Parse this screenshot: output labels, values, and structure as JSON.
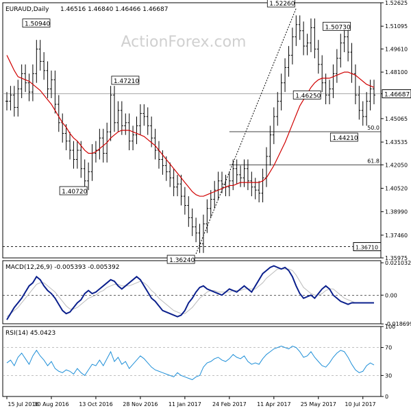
{
  "header": {
    "symbol": "EURAUD,Daily",
    "ohlc": "1.46516 1.46840 1.46466 1.46687"
  },
  "watermark": "ActionForex.com",
  "chart_data": [
    {
      "type": "ohlc",
      "title": "EURAUD,Daily",
      "ylim": [
        1.35975,
        1.52625
      ],
      "y_ticks": [
        "1.52625",
        "1.51095",
        "1.49610",
        "1.48100",
        "1.46687",
        "1.45065",
        "1.43535",
        "1.42050",
        "1.40520",
        "1.38990",
        "1.37460",
        "1.35975"
      ],
      "y_tick_values": [
        1.52625,
        1.51095,
        1.4961,
        1.481,
        1.46687,
        1.45065,
        1.43535,
        1.4205,
        1.4052,
        1.3899,
        1.3746,
        1.35975
      ],
      "current_price": 1.46687,
      "current_price_label": "1.46687",
      "close_series": [
        1.462,
        1.466,
        1.458,
        1.47,
        1.48,
        1.474,
        1.468,
        1.48,
        1.496,
        1.488,
        1.482,
        1.47,
        1.476,
        1.46,
        1.448,
        1.441,
        1.436,
        1.43,
        1.424,
        1.43,
        1.418,
        1.41,
        1.416,
        1.428,
        1.43,
        1.438,
        1.428,
        1.442,
        1.466,
        1.448,
        1.456,
        1.446,
        1.448,
        1.436,
        1.44,
        1.446,
        1.454,
        1.452,
        1.446,
        1.438,
        1.43,
        1.424,
        1.42,
        1.416,
        1.412,
        1.406,
        1.408,
        1.4,
        1.394,
        1.386,
        1.38,
        1.376,
        1.369,
        1.382,
        1.392,
        1.398,
        1.404,
        1.41,
        1.408,
        1.406,
        1.41,
        1.418,
        1.414,
        1.412,
        1.418,
        1.41,
        1.406,
        1.404,
        1.402,
        1.412,
        1.426,
        1.44,
        1.452,
        1.462,
        1.474,
        1.484,
        1.492,
        1.504,
        1.512,
        1.508,
        1.498,
        1.5,
        1.51,
        1.496,
        1.486,
        1.474,
        1.466,
        1.47,
        1.48,
        1.49,
        1.5,
        1.504,
        1.494,
        1.48,
        1.466,
        1.456,
        1.452,
        1.462,
        1.47,
        1.466
      ],
      "ma_series": [
        1.492,
        1.487,
        1.482,
        1.478,
        1.477,
        1.476,
        1.475,
        1.473,
        1.471,
        1.469,
        1.466,
        1.463,
        1.46,
        1.456,
        1.452,
        1.448,
        1.445,
        1.441,
        1.438,
        1.436,
        1.433,
        1.43,
        1.428,
        1.428,
        1.429,
        1.431,
        1.433,
        1.435,
        1.438,
        1.44,
        1.442,
        1.443,
        1.443,
        1.443,
        1.442,
        1.441,
        1.44,
        1.439,
        1.437,
        1.435,
        1.433,
        1.43,
        1.427,
        1.424,
        1.421,
        1.418,
        1.415,
        1.412,
        1.409,
        1.406,
        1.403,
        1.401,
        1.4,
        1.4,
        1.401,
        1.402,
        1.403,
        1.404,
        1.405,
        1.406,
        1.407,
        1.407,
        1.408,
        1.409,
        1.409,
        1.409,
        1.409,
        1.409,
        1.409,
        1.41,
        1.412,
        1.416,
        1.42,
        1.425,
        1.43,
        1.435,
        1.441,
        1.447,
        1.453,
        1.459,
        1.463,
        1.467,
        1.471,
        1.474,
        1.476,
        1.477,
        1.477,
        1.477,
        1.478,
        1.479,
        1.48,
        1.481,
        1.481,
        1.48,
        1.479,
        1.477,
        1.475,
        1.473,
        1.472,
        1.471
      ],
      "labels": [
        {
          "text": "1.50940",
          "value": 1.5094,
          "x_index": 12
        },
        {
          "text": "1.47210",
          "value": 1.4721,
          "x_index": 36
        },
        {
          "text": "1.40720",
          "value": 1.4072,
          "x_index": 22
        },
        {
          "text": "1.36240",
          "value": 1.3624,
          "x_index": 51
        },
        {
          "text": "1.52260",
          "value": 1.5226,
          "x_index": 78
        },
        {
          "text": "1.50730",
          "value": 1.5073,
          "x_index": 93
        },
        {
          "text": "1.46250",
          "value": 1.4625,
          "x_index": 85
        },
        {
          "text": "1.44210",
          "value": 1.4421,
          "x_index": 95
        }
      ],
      "horizontal_lines": [
        {
          "value": 1.4421,
          "label": "50.0"
        },
        {
          "value": 1.4205,
          "label": "61.8"
        }
      ],
      "support_line": {
        "value": 1.3671,
        "label": "1.36710"
      },
      "trendline": {
        "from": {
          "x_index": 51,
          "value": 1.3624
        },
        "to": {
          "x_index": 78,
          "value": 1.5226
        }
      }
    },
    {
      "type": "line",
      "title": "MACD(12,26,9) -0.005393 -0.005392",
      "ylim": [
        -0.0186,
        0.0224
      ],
      "y_ticks": [
        "0.021032",
        "0.00",
        "-0.018699"
      ],
      "y_tick_values": [
        0.021032,
        0.0,
        -0.018699
      ],
      "series": [
        {
          "name": "MACD",
          "values": [
            -0.016,
            -0.012,
            -0.008,
            -0.005,
            -0.002,
            0.002,
            0.006,
            0.008,
            0.012,
            0.01,
            0.006,
            0.003,
            0.001,
            -0.002,
            -0.006,
            -0.01,
            -0.012,
            -0.011,
            -0.008,
            -0.005,
            -0.003,
            0.001,
            0.003,
            0.001,
            0.002,
            0.004,
            0.006,
            0.008,
            0.01,
            0.009,
            0.006,
            0.004,
            0.006,
            0.008,
            0.01,
            0.012,
            0.01,
            0.006,
            0.002,
            -0.002,
            -0.004,
            -0.007,
            -0.01,
            -0.011,
            -0.012,
            -0.013,
            -0.014,
            -0.013,
            -0.01,
            -0.005,
            -0.002,
            0.002,
            0.005,
            0.006,
            0.004,
            0.003,
            0.002,
            0.001,
            0.0,
            0.002,
            0.004,
            0.003,
            0.002,
            0.004,
            0.006,
            0.004,
            0.002,
            0.006,
            0.01,
            0.014,
            0.016,
            0.018,
            0.019,
            0.018,
            0.017,
            0.018,
            0.016,
            0.012,
            0.006,
            0.001,
            -0.002,
            -0.001,
            0.0,
            -0.002,
            0.001,
            0.004,
            0.006,
            0.004,
            0.0,
            -0.002,
            -0.004,
            -0.005,
            -0.006,
            -0.005,
            -0.005,
            -0.005,
            -0.005,
            -0.005,
            -0.005,
            -0.005
          ]
        },
        {
          "name": "Signal",
          "values": [
            -0.014,
            -0.012,
            -0.01,
            -0.008,
            -0.005,
            -0.002,
            0.001,
            0.004,
            0.007,
            0.008,
            0.008,
            0.006,
            0.004,
            0.002,
            -0.001,
            -0.004,
            -0.007,
            -0.009,
            -0.009,
            -0.008,
            -0.006,
            -0.004,
            -0.002,
            -0.001,
            0.0,
            0.002,
            0.003,
            0.005,
            0.006,
            0.007,
            0.007,
            0.006,
            0.006,
            0.006,
            0.007,
            0.008,
            0.009,
            0.008,
            0.006,
            0.003,
            0.001,
            -0.002,
            -0.004,
            -0.006,
            -0.008,
            -0.01,
            -0.011,
            -0.012,
            -0.012,
            -0.01,
            -0.008,
            -0.005,
            -0.002,
            0.0,
            0.002,
            0.003,
            0.003,
            0.002,
            0.002,
            0.002,
            0.002,
            0.003,
            0.003,
            0.003,
            0.004,
            0.004,
            0.004,
            0.004,
            0.006,
            0.008,
            0.011,
            0.013,
            0.015,
            0.017,
            0.017,
            0.017,
            0.017,
            0.016,
            0.013,
            0.009,
            0.005,
            0.003,
            0.001,
            0.0,
            0.0,
            0.001,
            0.003,
            0.004,
            0.004,
            0.002,
            0.0,
            -0.002,
            -0.003,
            -0.004,
            -0.005,
            -0.005,
            -0.005,
            -0.005,
            -0.005,
            -0.005
          ]
        }
      ]
    },
    {
      "type": "line",
      "title": "RSI(14) 45.0423",
      "ylim": [
        0,
        100
      ],
      "y_ticks": [
        "100",
        "70",
        "30",
        "0"
      ],
      "y_tick_values": [
        100,
        70,
        30,
        0
      ],
      "series": [
        {
          "name": "RSI",
          "values": [
            48,
            52,
            44,
            56,
            62,
            54,
            46,
            58,
            66,
            58,
            52,
            44,
            50,
            40,
            36,
            34,
            38,
            36,
            32,
            40,
            34,
            30,
            38,
            46,
            44,
            52,
            44,
            54,
            64,
            50,
            56,
            46,
            50,
            40,
            46,
            52,
            58,
            54,
            48,
            42,
            38,
            36,
            34,
            32,
            30,
            28,
            34,
            30,
            28,
            26,
            24,
            28,
            30,
            42,
            48,
            50,
            54,
            56,
            52,
            50,
            54,
            60,
            56,
            54,
            58,
            50,
            46,
            48,
            46,
            54,
            60,
            64,
            68,
            70,
            72,
            70,
            68,
            72,
            70,
            64,
            56,
            58,
            64,
            56,
            50,
            44,
            42,
            48,
            56,
            62,
            66,
            64,
            56,
            46,
            38,
            34,
            36,
            44,
            48,
            45
          ]
        }
      ]
    }
  ],
  "x_axis": {
    "ticks": [
      "15 Jul 2016",
      "30 Aug 2016",
      "13 Oct 2016",
      "28 Nov 2016",
      "11 Jan 2017",
      "24 Feb 2017",
      "11 Apr 2017",
      "25 May 2017",
      "10 Jul 2017"
    ],
    "tick_indices": [
      0,
      12,
      24,
      36,
      48,
      60,
      72,
      84,
      96
    ]
  }
}
